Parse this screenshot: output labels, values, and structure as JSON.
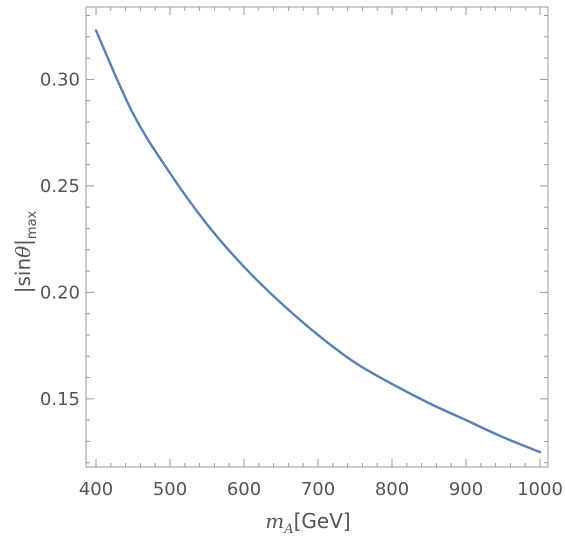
{
  "chart_data": {
    "type": "line",
    "title": "",
    "xlabel": {
      "var": "m",
      "sub": "A",
      "unit": "[GeV]"
    },
    "ylabel": {
      "prefix": "|sin",
      "var": "θ",
      "suffix": "|",
      "sub": "max"
    },
    "xlim": [
      400,
      1000
    ],
    "ylim": [
      0.118,
      0.334
    ],
    "x_ticks": [
      400,
      500,
      600,
      700,
      800,
      900,
      1000
    ],
    "y_ticks": [
      0.15,
      0.2,
      0.25,
      0.3
    ],
    "x_tick_labels": [
      "400",
      "500",
      "600",
      "700",
      "800",
      "900",
      "1000"
    ],
    "y_tick_labels": [
      "0.15",
      "0.20",
      "0.25",
      "0.30"
    ],
    "grid": false,
    "series": [
      {
        "color": "#5B7FB5",
        "x": [
          400,
          450,
          500,
          550,
          600,
          650,
          700,
          750,
          800,
          850,
          900,
          950,
          1000
        ],
        "y": [
          0.323,
          0.284,
          0.256,
          0.232,
          0.212,
          0.195,
          0.18,
          0.167,
          0.157,
          0.148,
          0.14,
          0.132,
          0.125
        ]
      }
    ]
  }
}
